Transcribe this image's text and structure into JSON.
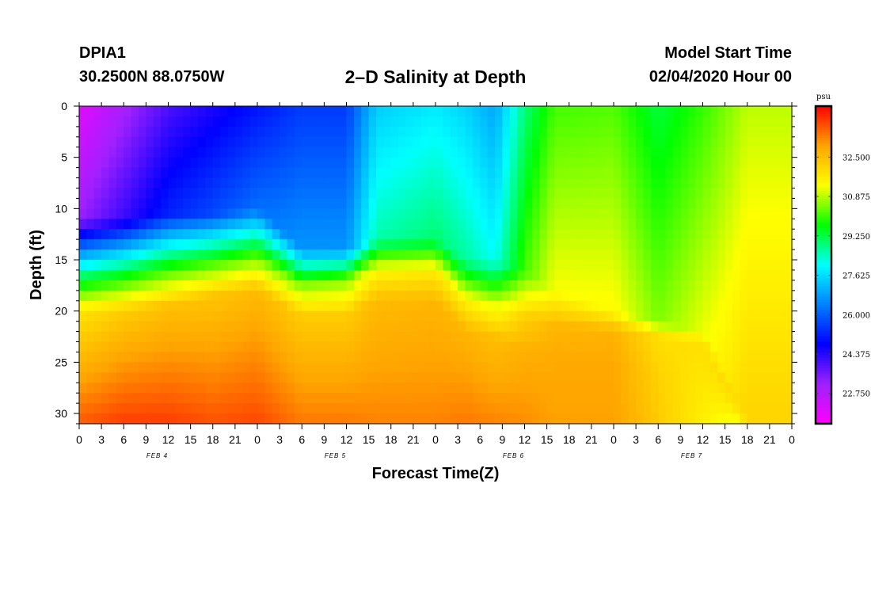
{
  "header": {
    "station": "DPIA1",
    "coords": "30.2500N 88.0750W",
    "title": "2–D Salinity at Depth",
    "model_start_label": "Model Start Time",
    "model_start_value": "02/04/2020 Hour 00"
  },
  "chart_data": {
    "type": "heatmap",
    "title": "2–D Salinity at Depth",
    "xlabel": "Forecast Time(Z)",
    "ylabel": "Depth (ft)",
    "x_unit": "hours from model start",
    "xlim": [
      0,
      96
    ],
    "ylim": [
      0,
      31
    ],
    "y_inverted": true,
    "x_tick_labels": [
      "0",
      "3",
      "6",
      "9",
      "12",
      "15",
      "18",
      "21",
      "0",
      "3",
      "6",
      "9",
      "12",
      "15",
      "18",
      "21",
      "0",
      "3",
      "6",
      "9",
      "12",
      "15",
      "18",
      "21",
      "0",
      "3",
      "6",
      "9",
      "12",
      "15",
      "18",
      "21",
      "0"
    ],
    "y_ticks": [
      0,
      5,
      10,
      15,
      20,
      25,
      30
    ],
    "date_labels": [
      {
        "label": "FEB 4",
        "hour": 10.5
      },
      {
        "label": "FEB 5",
        "hour": 34.5
      },
      {
        "label": "FEB 6",
        "hour": 58.5
      },
      {
        "label": "FEB 7",
        "hour": 82.5
      }
    ],
    "colorbar": {
      "unit": "psu",
      "vmin": 21.5,
      "vmax": 34.6,
      "tick_values": [
        22.75,
        24.375,
        26.0,
        27.625,
        29.25,
        30.875,
        32.5
      ],
      "tick_labels": [
        "22.750",
        "24.375",
        "26.000",
        "27.625",
        "29.250",
        "30.875",
        "32.500"
      ]
    },
    "colors": [
      "#ff00ff",
      "#a020ff",
      "#0000ff",
      "#0080ff",
      "#00ffff",
      "#00ff00",
      "#ffff00",
      "#ffa500",
      "#ff0000"
    ],
    "series": [
      {
        "hour": 0,
        "top": 22.0,
        "fresh_bottom": 11.0,
        "mid": 16.5,
        "low": 20.0,
        "bottom": 33.7
      },
      {
        "hour": 6,
        "top": 23.0,
        "fresh_bottom": 11.0,
        "mid": 16.5,
        "low": 20.0,
        "bottom": 34.0
      },
      {
        "hour": 12,
        "top": 24.0,
        "fresh_bottom": 10.5,
        "mid": 16.0,
        "low": 19.5,
        "bottom": 34.0
      },
      {
        "hour": 18,
        "top": 24.5,
        "fresh_bottom": 10.5,
        "mid": 15.5,
        "low": 18.5,
        "bottom": 33.8
      },
      {
        "hour": 24,
        "top": 25.0,
        "fresh_bottom": 10.0,
        "mid": 15.0,
        "low": 18.0,
        "bottom": 33.9
      },
      {
        "hour": 30,
        "top": 25.5,
        "fresh_bottom": 14.0,
        "mid": 17.5,
        "low": 20.5,
        "bottom": 33.4
      },
      {
        "hour": 36,
        "top": 25.5,
        "fresh_bottom": 14.0,
        "mid": 17.0,
        "low": 20.5,
        "bottom": 33.4
      },
      {
        "hour": 40,
        "top": 27.4,
        "fresh_bottom": 13.0,
        "mid": 16.0,
        "low": 19.0,
        "bottom": 33.3
      },
      {
        "hour": 48,
        "top": 27.8,
        "fresh_bottom": 13.0,
        "mid": 16.0,
        "low": 19.0,
        "bottom": 33.3
      },
      {
        "hour": 52,
        "top": 27.5,
        "fresh_bottom": 15.0,
        "mid": 19.0,
        "low": 22.0,
        "bottom": 33.4
      },
      {
        "hour": 56,
        "top": 26.9,
        "fresh_bottom": 15.0,
        "mid": 19.5,
        "low": 22.5,
        "bottom": 33.3
      },
      {
        "hour": 60,
        "top": 28.9,
        "fresh_bottom": 16.0,
        "mid": 20.5,
        "low": 24.0,
        "bottom": 33.2
      },
      {
        "hour": 64,
        "top": 30.1,
        "fresh_bottom": 18.0,
        "mid": 21.5,
        "low": 24.5,
        "bottom": 33.0
      },
      {
        "hour": 72,
        "top": 30.2,
        "fresh_bottom": 20.0,
        "mid": 22.0,
        "low": 25.0,
        "bottom": 33.0
      },
      {
        "hour": 78,
        "top": 29.3,
        "fresh_bottom": 21.0,
        "mid": 22.5,
        "low": 26.0,
        "bottom": 32.3
      },
      {
        "hour": 84,
        "top": 30.0,
        "fresh_bottom": 22.0,
        "mid": 23.0,
        "low": 28.0,
        "bottom": 31.6
      },
      {
        "hour": 90,
        "top": 30.9,
        "fresh_bottom": 30.0,
        "mid": 31.0,
        "low": 31.0,
        "bottom": 31.0
      },
      {
        "hour": 96,
        "top": 30.9,
        "fresh_bottom": 30.0,
        "mid": 31.0,
        "low": 31.0,
        "bottom": 31.0
      }
    ]
  }
}
